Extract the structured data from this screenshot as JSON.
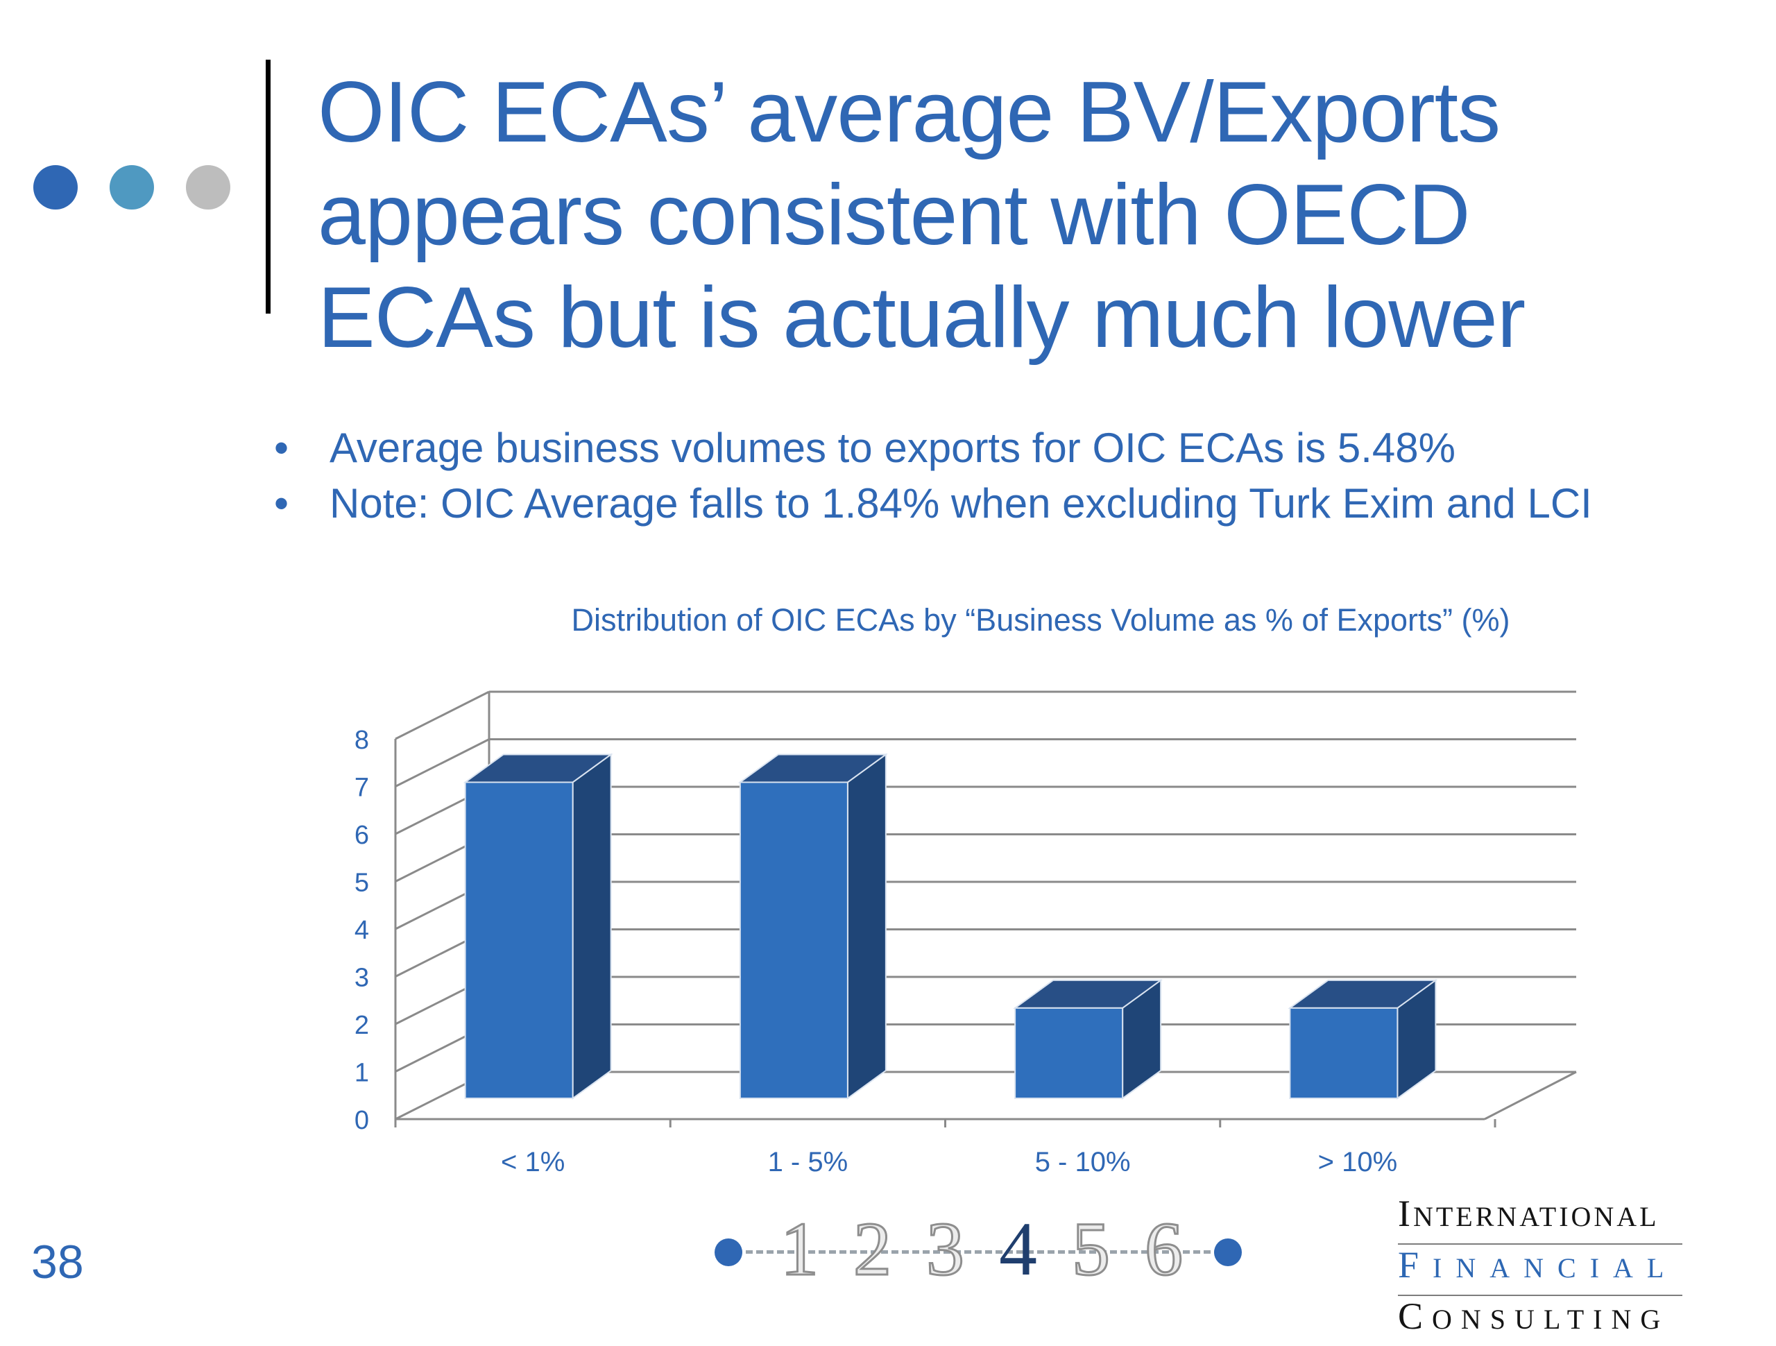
{
  "slide": {
    "title_lines": [
      "OIC ECAs’ average BV/Exports",
      "appears consistent with OECD",
      "ECAs but is actually much lower"
    ],
    "bullets": [
      "Average business volumes to exports for OIC ECAs is 5.48%",
      "Note: OIC Average falls to 1.84% when excluding Turk Exim and LCI"
    ],
    "page_number": "38"
  },
  "decor": {
    "dot_colors": [
      "#2f67b4",
      "#4f99c1",
      "#bdbdbd"
    ]
  },
  "nav": {
    "steps": [
      "1",
      "2",
      "3",
      "4",
      "5",
      "6"
    ],
    "active_step": "4"
  },
  "logo": {
    "line1": {
      "first": "I",
      "rest": "NTERNATIONAL"
    },
    "line2": {
      "first": "F",
      "rest": "INANCIAL"
    },
    "line3": {
      "first": "C",
      "rest": "ONSULTING"
    }
  },
  "colors": {
    "text_blue": "#2f67b4",
    "bar_front": "#2f6fbc",
    "bar_side": "#1f4577",
    "bar_top": "#284f86",
    "grid": "#8a8a8a"
  },
  "chart_data": {
    "type": "bar",
    "title": "Distribution of OIC ECAs by “Business Volume as % of Exports” (%)",
    "categories": [
      "< 1%",
      "1 - 5%",
      "5 - 10%",
      "> 10%"
    ],
    "values": [
      7,
      7,
      2,
      2
    ],
    "yticks": [
      "0",
      "1",
      "2",
      "3",
      "4",
      "5",
      "6",
      "7",
      "8"
    ],
    "ylim": [
      0,
      8
    ],
    "style": "3d-column",
    "grid": true,
    "legend": "none"
  }
}
